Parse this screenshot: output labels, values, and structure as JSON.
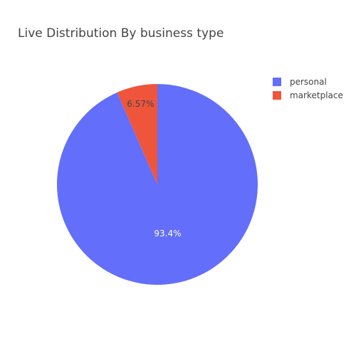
{
  "chart_data": {
    "type": "pie",
    "title": "Live Distribution By business type",
    "labels": [
      "personal",
      "marketplace"
    ],
    "values": [
      93.43,
      6.57
    ],
    "value_labels": [
      "93.4%",
      "6.57%"
    ],
    "colors": [
      "#636efa",
      "#ef553b"
    ],
    "label_colors": [
      "#ffffff",
      "#444444"
    ],
    "legend_position": "top-right",
    "direction": "clockwise",
    "start": "top"
  }
}
